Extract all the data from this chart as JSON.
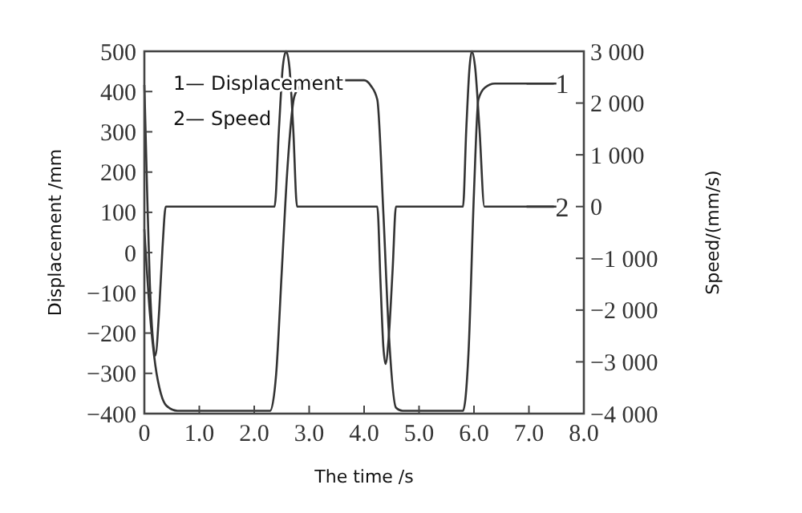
{
  "chart_data": {
    "type": "line",
    "xlabel": "The time /s",
    "ylabel": "Displacement /mm",
    "y2label": "Speed/(mm/s)",
    "xlim": [
      0,
      8
    ],
    "xticks": [
      0,
      {
        "value": 1,
        "label": "1.0"
      },
      {
        "value": 2,
        "label": "2.0"
      },
      {
        "value": 3,
        "label": "3.0"
      },
      {
        "value": 4,
        "label": "4.0"
      },
      {
        "value": 5,
        "label": "5.0"
      },
      {
        "value": 6,
        "label": "6.0"
      },
      {
        "value": 7,
        "label": "7.0"
      },
      {
        "value": 8,
        "label": "8.0"
      }
    ],
    "ylim": [
      -400,
      500
    ],
    "yticks": [
      500,
      400,
      300,
      200,
      100,
      0,
      {
        "value": -100,
        "label": "−100"
      },
      {
        "value": -200,
        "label": "−200"
      },
      {
        "value": -300,
        "label": "−300"
      },
      {
        "value": -400,
        "label": "−400"
      }
    ],
    "y2lim": [
      -4000,
      3000
    ],
    "y2ticks": [
      {
        "value": 3000,
        "label": "3 000"
      },
      {
        "value": 2000,
        "label": "2 000"
      },
      {
        "value": 1000,
        "label": "1 000"
      },
      0,
      {
        "value": -1000,
        "label": "−1 000"
      },
      {
        "value": -2000,
        "label": "−2 000"
      },
      {
        "value": -3000,
        "label": "−3 000"
      },
      {
        "value": -4000,
        "label": "−4 000"
      }
    ],
    "legend": "top left",
    "grid": false,
    "marker": "none",
    "line_style": "solid",
    "annotations": [
      {
        "text": "1",
        "x": 7.6,
        "y": 420
      },
      {
        "text": "2",
        "x": 7.6,
        "y": 114
      }
    ],
    "series": [
      {
        "name": "1— Displacement",
        "color": "#333333",
        "x": [
          0,
          0.1,
          0.2,
          0.3,
          0.4,
          0.6,
          2.29,
          2.4,
          2.5,
          2.6,
          2.73,
          2.85,
          3.07,
          4.0,
          4.12,
          4.24,
          4.35,
          4.45,
          4.58,
          4.7,
          5.8,
          5.9,
          6.0,
          6.08,
          6.2,
          6.38,
          7.5
        ],
        "values": [
          58,
          -150,
          -280,
          -350,
          -380,
          -393,
          -393,
          -300,
          -50,
          200,
          388,
          415,
          428,
          428,
          415,
          380,
          100,
          -200,
          -385,
          -393,
          -393,
          -250,
          150,
          380,
          410,
          420,
          420
        ]
      },
      {
        "name": "2— Speed",
        "color": "#333333",
        "axis": "y2",
        "x": [
          0,
          0.05,
          0.1,
          0.15,
          0.2,
          0.27,
          0.33,
          0.39,
          2.37,
          2.45,
          2.52,
          2.58,
          2.64,
          2.71,
          2.78,
          4.24,
          4.3,
          4.35,
          4.39,
          4.45,
          4.52,
          4.58,
          5.8,
          5.86,
          5.92,
          5.96,
          6.02,
          6.1,
          6.19,
          7.5
        ],
        "values": [
          2350,
          300,
          -1500,
          -2500,
          -2880,
          -2000,
          -800,
          0,
          0,
          1500,
          2700,
          3000,
          2700,
          1500,
          0,
          0,
          -1500,
          -2700,
          -3040,
          -2500,
          -1200,
          0,
          0,
          1500,
          2700,
          3000,
          2700,
          1500,
          0,
          0
        ]
      }
    ]
  }
}
